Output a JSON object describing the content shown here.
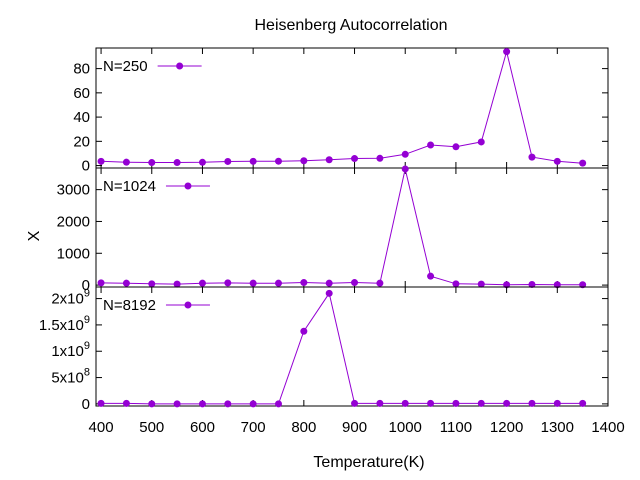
{
  "chart_data": {
    "type": "line",
    "title": "Heisenberg Autocorrelation",
    "xlabel": "Temperature(K)",
    "ylabel": "X",
    "xlim": [
      390,
      1400
    ],
    "xticks": [
      "400",
      "500",
      "600",
      "700",
      "800",
      "900",
      "1000",
      "1100",
      "1200",
      "1300",
      "1400"
    ],
    "x": [
      400,
      450,
      500,
      550,
      600,
      650,
      700,
      750,
      800,
      850,
      900,
      950,
      1000,
      1050,
      1100,
      1150,
      1200,
      1250,
      1300,
      1350
    ],
    "color": "#9400d3",
    "legend_position": "top-left",
    "grid": false,
    "panels": [
      {
        "name": "N=250",
        "ylim": [
          -2,
          97
        ],
        "ytick_values": [
          0,
          20,
          40,
          60,
          80
        ],
        "ytick_labels": [
          "0",
          "20",
          "40",
          "60",
          "80"
        ],
        "values": [
          3.5,
          2.8,
          2.5,
          2.5,
          2.7,
          3.4,
          3.5,
          3.6,
          4.0,
          4.8,
          5.8,
          6.0,
          9.3,
          17.0,
          15.5,
          19.5,
          94.0,
          7.0,
          3.5,
          2.0
        ]
      },
      {
        "name": "N=1024",
        "ylim": [
          -60,
          3680
        ],
        "ytick_values": [
          0,
          1000,
          2000,
          3000
        ],
        "ytick_labels": [
          "0",
          "1000",
          "2000",
          "3000"
        ],
        "values": [
          70,
          60,
          40,
          30,
          60,
          70,
          60,
          60,
          80,
          60,
          80,
          60,
          3650,
          280,
          40,
          30,
          10,
          20,
          10,
          10
        ]
      },
      {
        "name": "N=8192",
        "ylim": [
          -40000000,
          2220000000
        ],
        "ytick_values": [
          0,
          500000000,
          1000000000,
          1500000000,
          2000000000
        ],
        "ytick_labels": [
          {
            "base": "0",
            "exp": ""
          },
          {
            "base": "5x10",
            "exp": "8"
          },
          {
            "base": "1x10",
            "exp": "9"
          },
          {
            "base": "1.5x10",
            "exp": "9"
          },
          {
            "base": "2x10",
            "exp": "9"
          }
        ],
        "values": [
          10000000,
          10000000,
          0,
          0,
          0,
          0,
          0,
          0,
          1380000000,
          2100000000,
          10000000,
          10000000,
          10000000,
          10000000,
          10000000,
          10000000,
          10000000,
          10000000,
          10000000,
          10000000
        ]
      }
    ]
  }
}
